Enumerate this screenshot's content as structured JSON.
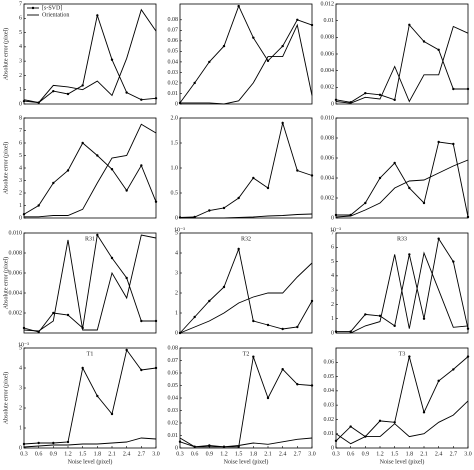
{
  "chart_data": [
    {
      "type": "line",
      "xlim": [
        0.3,
        3.0
      ],
      "x": [
        0.3,
        0.6,
        0.9,
        1.2,
        1.5,
        1.8,
        2.1,
        2.4,
        2.7,
        3.0
      ],
      "ylim": [
        0,
        7
      ],
      "yticks": [
        0,
        1,
        2,
        3,
        4,
        5,
        6,
        7
      ],
      "ylabel": "Absolute error (pixel)",
      "series": [
        {
          "name": "[s-SVD]",
          "color": "#000000",
          "values": [
            0.2,
            0.1,
            0.9,
            0.7,
            1.3,
            6.2,
            3.1,
            0.8,
            0.3,
            0.4
          ]
        },
        {
          "name": "Orientation",
          "color": "#000000",
          "values": [
            0.3,
            0.1,
            1.3,
            1.2,
            1.0,
            1.6,
            0.6,
            3.2,
            6.6,
            5.1
          ]
        }
      ]
    },
    {
      "type": "line",
      "xlim": [
        0.3,
        3.0
      ],
      "x": [
        0.3,
        0.6,
        0.9,
        1.2,
        1.5,
        1.8,
        2.1,
        2.4,
        2.7,
        3.0
      ],
      "ylim": [
        0,
        0.095
      ],
      "yticks": [
        0,
        0.01,
        0.02,
        0.03,
        0.04,
        0.05,
        0.06,
        0.07,
        0.08
      ],
      "series": [
        {
          "color": "#000000",
          "values": [
            0.001,
            0.02,
            0.04,
            0.055,
            0.093,
            0.063,
            0.041,
            0.055,
            0.08,
            0.075
          ]
        },
        {
          "color": "#000000",
          "values": [
            0.001,
            0.001,
            0.001,
            0.0,
            0.003,
            0.02,
            0.045,
            0.045,
            0.075,
            0.008
          ]
        }
      ]
    },
    {
      "type": "line",
      "xlim": [
        0.3,
        3.0
      ],
      "x": [
        0.3,
        0.6,
        0.9,
        1.2,
        1.5,
        1.8,
        2.1,
        2.4,
        2.7,
        3.0
      ],
      "ylim": [
        0,
        0.012
      ],
      "yticks": [
        0,
        0.002,
        0.004,
        0.006,
        0.008,
        0.01,
        0.012
      ],
      "series": [
        {
          "color": "#000000",
          "values": [
            0.0005,
            0.0002,
            0.0013,
            0.0011,
            0.0005,
            0.0095,
            0.0075,
            0.0065,
            0.0018,
            0.0018
          ]
        },
        {
          "color": "#000000",
          "values": [
            0.0003,
            0.0001,
            0.0008,
            0.0006,
            0.0045,
            0.0003,
            0.0035,
            0.0035,
            0.0093,
            0.0085
          ]
        }
      ]
    },
    {
      "type": "line",
      "xlim": [
        0.3,
        3.0
      ],
      "x": [
        0.3,
        0.6,
        0.9,
        1.2,
        1.5,
        1.8,
        2.1,
        2.4,
        2.7,
        3.0
      ],
      "ylim": [
        0,
        8
      ],
      "yticks": [
        0,
        1,
        2,
        3,
        4,
        5,
        6,
        7,
        8
      ],
      "ylabel": "Absolute error (pixel)",
      "series": [
        {
          "color": "#000000",
          "values": [
            0.3,
            1.0,
            2.8,
            3.8,
            6.0,
            5.0,
            3.9,
            2.2,
            4.2,
            1.3
          ]
        },
        {
          "color": "#000000",
          "values": [
            0.1,
            0.1,
            0.2,
            0.2,
            0.7,
            2.8,
            4.8,
            5.0,
            7.5,
            6.8
          ]
        }
      ]
    },
    {
      "type": "line",
      "xlim": [
        0.3,
        3.0
      ],
      "x": [
        0.3,
        0.6,
        0.9,
        1.2,
        1.5,
        1.8,
        2.1,
        2.4,
        2.7,
        3.0
      ],
      "ylim": [
        0,
        2
      ],
      "yticks": [
        0,
        0.5,
        {
          "value": 1,
          "label": "1.0"
        },
        1.5,
        {
          "value": 2,
          "label": "2.0"
        }
      ],
      "series": [
        {
          "color": "#000000",
          "values": [
            0.01,
            0.02,
            0.15,
            0.2,
            0.4,
            0.8,
            0.6,
            1.9,
            0.95,
            0.85
          ]
        },
        {
          "color": "#000000",
          "values": [
            0,
            0,
            0,
            0,
            0.01,
            0.02,
            0.04,
            0.05,
            0.07,
            0.08
          ]
        }
      ]
    },
    {
      "type": "line",
      "xlim": [
        0.3,
        3.0
      ],
      "x": [
        0.3,
        0.6,
        0.9,
        1.2,
        1.5,
        1.8,
        2.1,
        2.4,
        2.7,
        3.0
      ],
      "ylim": [
        0,
        0.01
      ],
      "yticks": [
        0,
        0.002,
        0.004,
        0.006,
        0.008,
        {
          "value": 0.01,
          "label": "0.010"
        }
      ],
      "series": [
        {
          "color": "#000000",
          "values": [
            0.0003,
            0.0003,
            0.0015,
            0.004,
            0.0055,
            0.003,
            0.0015,
            0.0076,
            0.0074,
            0.0001
          ]
        },
        {
          "color": "#000000",
          "values": [
            0.0001,
            0.0002,
            0.0008,
            0.0015,
            0.003,
            0.0037,
            0.0038,
            0.0045,
            0.0052,
            0.0058
          ]
        }
      ]
    },
    {
      "type": "line",
      "title": "R31",
      "xlim": [
        0.3,
        3.0
      ],
      "x": [
        0.3,
        0.6,
        0.9,
        1.2,
        1.5,
        1.8,
        2.1,
        2.4,
        2.7,
        3.0
      ],
      "ylim": [
        0,
        0.01
      ],
      "yticks": [
        0.002,
        0.004,
        0.006,
        0.008,
        {
          "value": 0.01,
          "label": "0.010"
        }
      ],
      "ylabel": "Absolute error (pixel)",
      "series": [
        {
          "color": "#000000",
          "values": [
            0.0005,
            0.0001,
            0.002,
            0.0018,
            0.0005,
            0.0098,
            0.0075,
            0.0055,
            0.0012,
            0.0012
          ]
        },
        {
          "color": "#000000",
          "values": [
            0.0003,
            0.0002,
            0.0012,
            0.0093,
            0.0003,
            0.0003,
            0.006,
            0.0035,
            0.0098,
            0.0095
          ]
        }
      ]
    },
    {
      "type": "line",
      "title": "R32",
      "scale": "10⁻³",
      "xlim": [
        0.3,
        3.0
      ],
      "x": [
        0.3,
        0.6,
        0.9,
        1.2,
        1.5,
        1.8,
        2.1,
        2.4,
        2.7,
        3.0
      ],
      "ylim": [
        0,
        5
      ],
      "yticks": [
        0,
        1,
        2,
        3,
        4,
        5
      ],
      "series": [
        {
          "color": "#000000",
          "values": [
            0,
            0.8,
            1.6,
            2.3,
            4.2,
            0.6,
            0.4,
            0.2,
            0.3,
            1.6
          ]
        },
        {
          "color": "#000000",
          "values": [
            0,
            0.3,
            0.6,
            1.0,
            1.5,
            1.8,
            2.0,
            2.0,
            2.8,
            3.5
          ]
        }
      ]
    },
    {
      "type": "line",
      "title": "R33",
      "scale": "10⁻³",
      "xlim": [
        0.3,
        3.0
      ],
      "x": [
        0.3,
        0.6,
        0.9,
        1.2,
        1.5,
        1.8,
        2.1,
        2.4,
        2.7,
        3.0
      ],
      "ylim": [
        0,
        7
      ],
      "yticks": [
        0,
        1,
        2,
        3,
        4,
        5,
        6,
        7
      ],
      "series": [
        {
          "color": "#000000",
          "values": [
            0.1,
            0.1,
            1.3,
            1.2,
            0.5,
            5.5,
            1.0,
            6.6,
            5.0,
            0.3
          ]
        },
        {
          "color": "#000000",
          "values": [
            0,
            0,
            0.5,
            0.8,
            5.5,
            0.3,
            5.6,
            3.0,
            0.4,
            0.5
          ]
        }
      ]
    },
    {
      "type": "line",
      "title": "T1",
      "scale": "10⁻³",
      "xlim": [
        0.3,
        3.0
      ],
      "x": [
        0.3,
        0.6,
        0.9,
        1.2,
        1.5,
        1.8,
        2.1,
        2.4,
        2.7,
        3.0
      ],
      "ylim": [
        0,
        5
      ],
      "yticks": [
        0,
        1,
        2,
        3,
        4,
        5
      ],
      "ylabel": "Absolute error (pixel)",
      "xlabel": "Noise level (pixel)",
      "xticks": [
        0.3,
        0.6,
        0.9,
        1.2,
        1.5,
        1.8,
        2.1,
        2.4,
        2.7,
        {
          "value": 3,
          "label": "3.0"
        }
      ],
      "series": [
        {
          "color": "#000000",
          "values": [
            0.2,
            0.25,
            0.25,
            0.3,
            4.0,
            2.6,
            1.7,
            4.9,
            3.9,
            4.0
          ]
        },
        {
          "color": "#000000",
          "values": [
            0.05,
            0.1,
            0.15,
            0.15,
            0.2,
            0.2,
            0.25,
            0.3,
            0.5,
            0.45
          ]
        }
      ]
    },
    {
      "type": "line",
      "title": "T2",
      "xlim": [
        0.3,
        3.0
      ],
      "x": [
        0.3,
        0.6,
        0.9,
        1.2,
        1.5,
        1.8,
        2.1,
        2.4,
        2.7,
        3.0
      ],
      "ylim": [
        0,
        0.08
      ],
      "yticks": [
        0,
        0.01,
        0.02,
        0.03,
        0.04,
        0.05,
        0.06,
        0.07,
        0.08
      ],
      "xlabel": "Noise level (pixel)",
      "xticks": [
        0.3,
        0.6,
        0.9,
        1.2,
        1.5,
        1.8,
        2.1,
        2.4,
        2.7,
        {
          "value": 3,
          "label": "3.0"
        }
      ],
      "series": [
        {
          "color": "#000000",
          "values": [
            0.005,
            0.001,
            0.002,
            0.001,
            0.001,
            0.073,
            0.04,
            0.063,
            0.051,
            0.05
          ]
        },
        {
          "color": "#000000",
          "values": [
            0.008,
            0.001,
            0.001,
            0.001,
            0.002,
            0.004,
            0.003,
            0.005,
            0.007,
            0.008
          ]
        }
      ]
    },
    {
      "type": "line",
      "title": "T3",
      "xlim": [
        0.3,
        3.0
      ],
      "x": [
        0.3,
        0.6,
        0.9,
        1.2,
        1.5,
        1.8,
        2.1,
        2.4,
        2.7,
        3.0
      ],
      "ylim": [
        0,
        0.07
      ],
      "yticks": [
        0,
        0.01,
        0.02,
        0.03,
        0.04,
        0.05,
        0.06
      ],
      "xlabel": "Noise level (pixel)",
      "xticks": [
        0.3,
        0.6,
        0.9,
        1.2,
        1.5,
        1.8,
        2.1,
        2.4,
        2.7,
        {
          "value": 3,
          "label": "3.0"
        }
      ],
      "series": [
        {
          "color": "#000000",
          "values": [
            0.005,
            0.015,
            0.008,
            0.019,
            0.018,
            0.064,
            0.025,
            0.047,
            0.055,
            0.064
          ]
        },
        {
          "color": "#000000",
          "values": [
            0.01,
            0.003,
            0.008,
            0.008,
            0.017,
            0.008,
            0.01,
            0.018,
            0.023,
            0.033
          ]
        }
      ]
    }
  ]
}
